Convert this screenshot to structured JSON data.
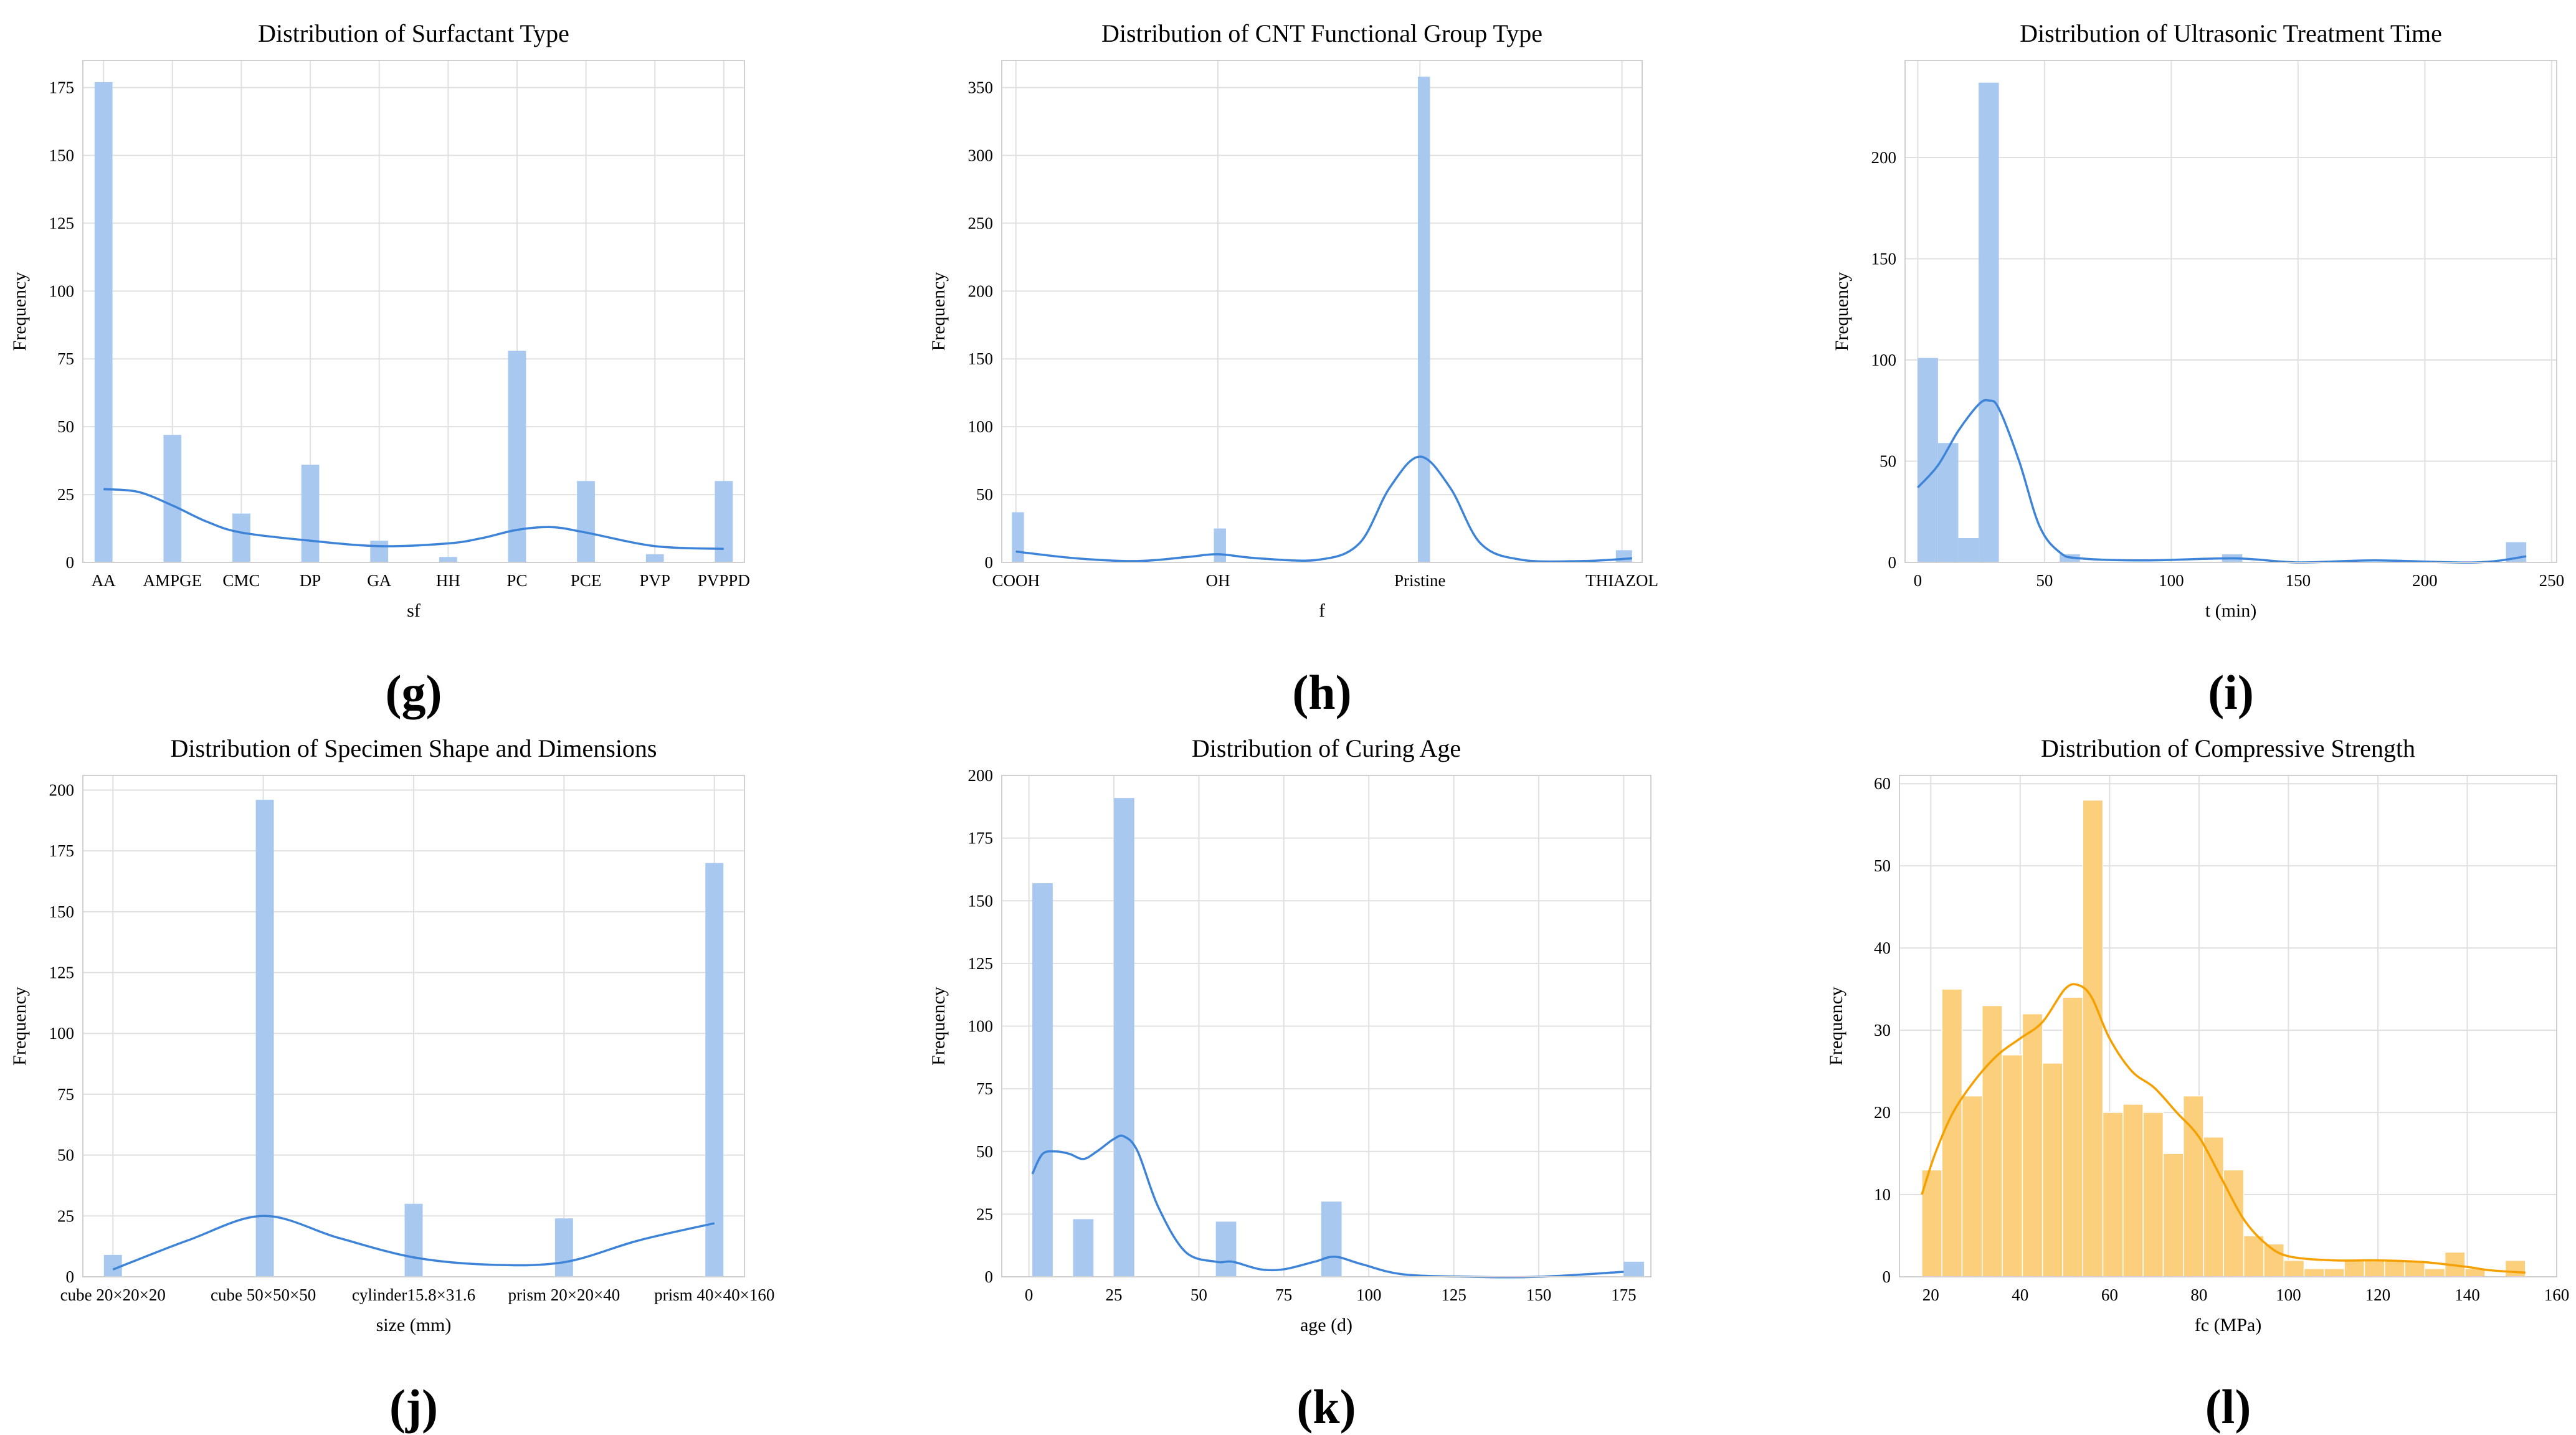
{
  "colors": {
    "bar_blue": "#a8c8ef",
    "line_blue": "#3d84d8",
    "bar_orange": "#fbcf7c",
    "line_orange": "#f5a000",
    "grid": "#e0e0e0",
    "axis": "#d0d0d0"
  },
  "chart_data": [
    {
      "panel": "(g)",
      "type": "bar",
      "title": "Distribution of Surfactant Type",
      "xlabel": "sf",
      "ylabel": "Frequency",
      "xtype": "cat",
      "xlim": [
        -0.3,
        9.3
      ],
      "ylim": [
        0,
        185
      ],
      "yticks": [
        0,
        25,
        50,
        75,
        100,
        125,
        150,
        175
      ],
      "categories": [
        "AA",
        "AMPGE",
        "CMC",
        "DP",
        "GA",
        "HH",
        "PC",
        "PCE",
        "PVP",
        "PVPPD"
      ],
      "bars": [
        {
          "x0": -0.13,
          "x1": 0.13,
          "v": 177
        },
        {
          "x0": 0.87,
          "x1": 1.13,
          "v": 47
        },
        {
          "x0": 1.87,
          "x1": 2.13,
          "v": 18
        },
        {
          "x0": 2.87,
          "x1": 3.13,
          "v": 36
        },
        {
          "x0": 3.87,
          "x1": 4.13,
          "v": 8
        },
        {
          "x0": 4.87,
          "x1": 5.13,
          "v": 2
        },
        {
          "x0": 5.87,
          "x1": 6.13,
          "v": 78
        },
        {
          "x0": 6.87,
          "x1": 7.13,
          "v": 30
        },
        {
          "x0": 7.87,
          "x1": 8.13,
          "v": 3
        },
        {
          "x0": 8.87,
          "x1": 9.13,
          "v": 30
        }
      ],
      "kde": [
        [
          0,
          27
        ],
        [
          0.5,
          26
        ],
        [
          1,
          21
        ],
        [
          1.5,
          15
        ],
        [
          2,
          11
        ],
        [
          3,
          8
        ],
        [
          4,
          6
        ],
        [
          5,
          7
        ],
        [
          5.5,
          9
        ],
        [
          6,
          12
        ],
        [
          6.5,
          13
        ],
        [
          7,
          11
        ],
        [
          8,
          6
        ],
        [
          9,
          5
        ]
      ]
    },
    {
      "panel": "(h)",
      "type": "bar",
      "title": "Distribution of CNT Functional Group Type",
      "xlabel": "f",
      "ylabel": "Frequency",
      "xtype": "cat",
      "xlim": [
        -0.07,
        3.1
      ],
      "ylim": [
        0,
        370
      ],
      "yticks": [
        0,
        50,
        100,
        150,
        200,
        250,
        300,
        350
      ],
      "categories": [
        "COOH",
        "OH",
        "Pristine",
        "THIAZOL"
      ],
      "bars": [
        {
          "x0": -0.02,
          "x1": 0.04,
          "v": 37
        },
        {
          "x0": 0.98,
          "x1": 1.04,
          "v": 25
        },
        {
          "x0": 1.99,
          "x1": 2.05,
          "v": 358
        },
        {
          "x0": 2.97,
          "x1": 3.05,
          "v": 9
        }
      ],
      "kde": [
        [
          0,
          8
        ],
        [
          0.3,
          3
        ],
        [
          0.6,
          1
        ],
        [
          0.85,
          4
        ],
        [
          1,
          6
        ],
        [
          1.2,
          3
        ],
        [
          1.5,
          2
        ],
        [
          1.7,
          14
        ],
        [
          1.85,
          55
        ],
        [
          2,
          78
        ],
        [
          2.15,
          55
        ],
        [
          2.3,
          14
        ],
        [
          2.5,
          2
        ],
        [
          2.8,
          1
        ],
        [
          3.05,
          3
        ]
      ]
    },
    {
      "panel": "(i)",
      "type": "histogram",
      "title": "Distribution of Ultrasonic Treatment Time",
      "xlabel": "t (min)",
      "ylabel": "Frequency",
      "xtype": "num",
      "xlim": [
        -5,
        252
      ],
      "ylim": [
        0,
        248
      ],
      "xticks": [
        0,
        50,
        100,
        150,
        200,
        250
      ],
      "yticks": [
        0,
        50,
        100,
        150,
        200
      ],
      "bars": [
        {
          "x0": 0,
          "x1": 8,
          "v": 101
        },
        {
          "x0": 8,
          "x1": 16,
          "v": 59
        },
        {
          "x0": 16,
          "x1": 24,
          "v": 12
        },
        {
          "x0": 24,
          "x1": 32,
          "v": 237
        },
        {
          "x0": 56,
          "x1": 64,
          "v": 4
        },
        {
          "x0": 120,
          "x1": 128,
          "v": 4
        },
        {
          "x0": 232,
          "x1": 240,
          "v": 10
        }
      ],
      "kde": [
        [
          0,
          37
        ],
        [
          8,
          48
        ],
        [
          16,
          65
        ],
        [
          24,
          78
        ],
        [
          28,
          80
        ],
        [
          32,
          76
        ],
        [
          40,
          50
        ],
        [
          48,
          18
        ],
        [
          56,
          5
        ],
        [
          64,
          2
        ],
        [
          90,
          1
        ],
        [
          125,
          2
        ],
        [
          150,
          0
        ],
        [
          180,
          1
        ],
        [
          220,
          0
        ],
        [
          240,
          3
        ]
      ]
    },
    {
      "panel": "(j)",
      "type": "bar",
      "title": "Distribution of Specimen Shape and Dimensions",
      "xlabel": "size (mm)",
      "ylabel": "Frequency",
      "xtype": "cat",
      "xlim": [
        -0.2,
        4.2
      ],
      "ylim": [
        0,
        206
      ],
      "yticks": [
        0,
        25,
        50,
        75,
        100,
        125,
        150,
        175,
        200
      ],
      "categories": [
        "cube 20×20×20",
        "cube 50×50×50",
        "cylinder15.8×31.6",
        "prism 20×20×40",
        "prism 40×40×160"
      ],
      "bars": [
        {
          "x0": -0.06,
          "x1": 0.06,
          "v": 9
        },
        {
          "x0": 0.95,
          "x1": 1.07,
          "v": 196
        },
        {
          "x0": 1.94,
          "x1": 2.06,
          "v": 30
        },
        {
          "x0": 2.94,
          "x1": 3.06,
          "v": 24
        },
        {
          "x0": 3.94,
          "x1": 4.06,
          "v": 170
        }
      ],
      "kde": [
        [
          0,
          3
        ],
        [
          0.5,
          15
        ],
        [
          1,
          25
        ],
        [
          1.5,
          16
        ],
        [
          2,
          8
        ],
        [
          2.5,
          5
        ],
        [
          3,
          6
        ],
        [
          3.5,
          15
        ],
        [
          4,
          22
        ]
      ]
    },
    {
      "panel": "(k)",
      "type": "histogram",
      "title": "Distribution of Curing Age",
      "xlabel": "age (d)",
      "ylabel": "Frequency",
      "xtype": "num",
      "xlim": [
        -8,
        183
      ],
      "ylim": [
        0,
        200
      ],
      "xticks": [
        0,
        25,
        50,
        75,
        100,
        125,
        150,
        175
      ],
      "yticks": [
        0,
        25,
        50,
        75,
        100,
        125,
        150,
        175,
        200
      ],
      "bars": [
        {
          "x0": 1,
          "x1": 7,
          "v": 157
        },
        {
          "x0": 13,
          "x1": 19,
          "v": 23
        },
        {
          "x0": 25,
          "x1": 31,
          "v": 191
        },
        {
          "x0": 55,
          "x1": 61,
          "v": 22
        },
        {
          "x0": 86,
          "x1": 92,
          "v": 30
        },
        {
          "x0": 175,
          "x1": 181,
          "v": 6
        }
      ],
      "kde": [
        [
          1,
          41
        ],
        [
          4,
          49
        ],
        [
          8,
          50
        ],
        [
          12,
          49
        ],
        [
          16,
          47
        ],
        [
          20,
          50
        ],
        [
          25,
          55
        ],
        [
          28,
          56
        ],
        [
          32,
          50
        ],
        [
          38,
          28
        ],
        [
          46,
          10
        ],
        [
          55,
          6
        ],
        [
          60,
          6
        ],
        [
          68,
          3
        ],
        [
          75,
          3
        ],
        [
          84,
          6
        ],
        [
          90,
          8
        ],
        [
          98,
          5
        ],
        [
          110,
          1
        ],
        [
          130,
          0
        ],
        [
          150,
          0
        ],
        [
          175,
          2
        ]
      ]
    },
    {
      "panel": "(l)",
      "type": "histogram",
      "title": "Distribution of Compressive Strength",
      "xlabel": "fc (MPa)",
      "ylabel": "Frequency",
      "xtype": "num",
      "color": "orange",
      "xlim": [
        13,
        160
      ],
      "ylim": [
        0,
        61
      ],
      "xticks": [
        20,
        40,
        60,
        80,
        100,
        120,
        140,
        160
      ],
      "yticks": [
        0,
        10,
        20,
        30,
        40,
        50,
        60
      ],
      "bars": [
        {
          "x0": 18,
          "x1": 22.5,
          "v": 13
        },
        {
          "x0": 22.5,
          "x1": 27,
          "v": 35
        },
        {
          "x0": 27,
          "x1": 31.5,
          "v": 22
        },
        {
          "x0": 31.5,
          "x1": 36,
          "v": 33
        },
        {
          "x0": 36,
          "x1": 40.5,
          "v": 27
        },
        {
          "x0": 40.5,
          "x1": 45,
          "v": 32
        },
        {
          "x0": 45,
          "x1": 49.5,
          "v": 26
        },
        {
          "x0": 49.5,
          "x1": 54,
          "v": 34
        },
        {
          "x0": 54,
          "x1": 58.5,
          "v": 58
        },
        {
          "x0": 58.5,
          "x1": 63,
          "v": 20
        },
        {
          "x0": 63,
          "x1": 67.5,
          "v": 21
        },
        {
          "x0": 67.5,
          "x1": 72,
          "v": 20
        },
        {
          "x0": 72,
          "x1": 76.5,
          "v": 15
        },
        {
          "x0": 76.5,
          "x1": 81,
          "v": 22
        },
        {
          "x0": 81,
          "x1": 85.5,
          "v": 17
        },
        {
          "x0": 85.5,
          "x1": 90,
          "v": 13
        },
        {
          "x0": 90,
          "x1": 94.5,
          "v": 5
        },
        {
          "x0": 94.5,
          "x1": 99,
          "v": 4
        },
        {
          "x0": 99,
          "x1": 103.5,
          "v": 2
        },
        {
          "x0": 103.5,
          "x1": 108,
          "v": 1
        },
        {
          "x0": 108,
          "x1": 112.5,
          "v": 1
        },
        {
          "x0": 112.5,
          "x1": 117,
          "v": 2
        },
        {
          "x0": 117,
          "x1": 121.5,
          "v": 2
        },
        {
          "x0": 121.5,
          "x1": 126,
          "v": 2
        },
        {
          "x0": 126,
          "x1": 130.5,
          "v": 2
        },
        {
          "x0": 130.5,
          "x1": 135,
          "v": 1
        },
        {
          "x0": 135,
          "x1": 139.5,
          "v": 3
        },
        {
          "x0": 139.5,
          "x1": 144,
          "v": 1
        },
        {
          "x0": 148.5,
          "x1": 153,
          "v": 2
        }
      ],
      "kde": [
        [
          18,
          10
        ],
        [
          21,
          15
        ],
        [
          25,
          20
        ],
        [
          30,
          24
        ],
        [
          35,
          27
        ],
        [
          40,
          29
        ],
        [
          45,
          31
        ],
        [
          50,
          35
        ],
        [
          53,
          35.5
        ],
        [
          56,
          34
        ],
        [
          60,
          29
        ],
        [
          65,
          25
        ],
        [
          70,
          23
        ],
        [
          75,
          20
        ],
        [
          80,
          17
        ],
        [
          85,
          12
        ],
        [
          90,
          7
        ],
        [
          95,
          4
        ],
        [
          100,
          2.5
        ],
        [
          110,
          2
        ],
        [
          120,
          2
        ],
        [
          130,
          1.8
        ],
        [
          140,
          1.2
        ],
        [
          145,
          0.8
        ],
        [
          153,
          0.5
        ]
      ]
    }
  ]
}
